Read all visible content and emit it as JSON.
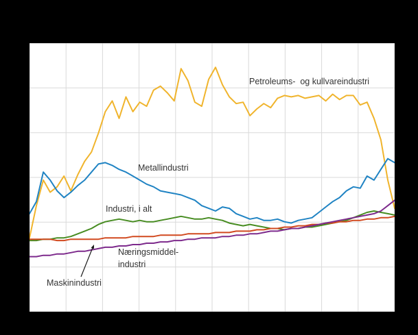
{
  "colors": {
    "background": "#000000",
    "plot_background": "#ffffff",
    "grid": "#d9d9d9",
    "text": "#333333",
    "petroleum": "#f0b42c",
    "metall": "#1f83c3",
    "industri": "#478c21",
    "maskin": "#d1491f",
    "naering": "#7d2a8c"
  },
  "labels": {
    "petroleum": "Petroleums-  og kullvareindustri",
    "metall": "Metallindustri",
    "industri": "Industri, i alt",
    "naering_line1": "Næringsmiddel-",
    "naering_line2": "industri",
    "maskin": "Maskinindustri"
  },
  "chart_data": {
    "type": "line",
    "title": "",
    "xlabel": "",
    "ylabel": "",
    "axis_labels_visible": false,
    "grid": true,
    "legend_position": "inline-annotations",
    "ylim": [
      0,
      200
    ],
    "x": [
      0,
      1,
      2,
      3,
      4,
      5,
      6,
      7,
      8,
      9,
      10,
      11,
      12,
      13,
      14,
      15,
      16,
      17,
      18,
      19,
      20,
      21,
      22,
      23,
      24,
      25,
      26,
      27,
      28,
      29,
      30,
      31,
      32,
      33,
      34,
      35,
      36,
      37,
      38,
      39,
      40,
      41,
      42,
      43,
      44,
      45,
      46,
      47,
      48,
      49,
      50,
      51,
      52,
      53
    ],
    "series": [
      {
        "name": "Petroleums- og kullvareindustri",
        "color": "#f0b42c",
        "values": [
          55,
          79,
          98,
          89,
          93,
          101,
          90,
          102,
          112,
          119,
          133,
          149,
          157,
          144,
          160,
          149,
          156,
          153,
          165,
          168,
          163,
          157,
          181,
          172,
          156,
          153,
          173,
          182,
          169,
          160,
          155,
          156,
          146,
          151,
          155,
          152,
          159,
          161,
          160,
          161,
          159,
          160,
          161,
          157,
          162,
          158,
          161,
          161,
          154,
          156,
          144,
          128,
          98,
          77
        ]
      },
      {
        "name": "Metallindustri",
        "color": "#1f83c3",
        "values": [
          73,
          82,
          104,
          98,
          90,
          85,
          89,
          94,
          98,
          104,
          110,
          111,
          109,
          106,
          104,
          101,
          98,
          95,
          93,
          90,
          89,
          88,
          87,
          85,
          83,
          79,
          77,
          75,
          78,
          77,
          73,
          71,
          69,
          70,
          68,
          68,
          69,
          67,
          66,
          68,
          69,
          70,
          74,
          78,
          82,
          85,
          90,
          93,
          92,
          101,
          98,
          106,
          114,
          111
        ]
      },
      {
        "name": "Industri, i alt",
        "color": "#478c21",
        "values": [
          53,
          53,
          54,
          54,
          55,
          55,
          56,
          58,
          60,
          62,
          65,
          67,
          68,
          69,
          68,
          67,
          68,
          67,
          67,
          68,
          69,
          70,
          71,
          70,
          69,
          69,
          70,
          69,
          68,
          66,
          65,
          64,
          65,
          64,
          63,
          62,
          62,
          61,
          62,
          62,
          63,
          63,
          64,
          65,
          66,
          67,
          68,
          70,
          72,
          74,
          75,
          74,
          73,
          72
        ]
      },
      {
        "name": "Maskinindustri",
        "color": "#d1491f",
        "values": [
          54,
          54,
          54,
          54,
          53,
          53,
          54,
          54,
          54,
          54,
          54,
          55,
          55,
          55,
          55,
          56,
          56,
          56,
          56,
          57,
          57,
          57,
          57,
          58,
          58,
          58,
          58,
          59,
          59,
          59,
          60,
          60,
          60,
          61,
          61,
          62,
          62,
          63,
          63,
          64,
          64,
          65,
          65,
          66,
          66,
          67,
          67,
          68,
          68,
          69,
          69,
          70,
          70,
          71
        ]
      },
      {
        "name": "Næringsmiddelindustri",
        "color": "#7d2a8c",
        "values": [
          41,
          41,
          42,
          42,
          43,
          43,
          44,
          45,
          45,
          46,
          47,
          48,
          48,
          49,
          49,
          50,
          50,
          51,
          51,
          52,
          52,
          53,
          53,
          54,
          54,
          55,
          55,
          55,
          56,
          56,
          57,
          57,
          58,
          58,
          59,
          60,
          60,
          61,
          62,
          62,
          63,
          64,
          65,
          66,
          67,
          68,
          69,
          70,
          71,
          72,
          73,
          75,
          79,
          83
        ]
      }
    ]
  }
}
